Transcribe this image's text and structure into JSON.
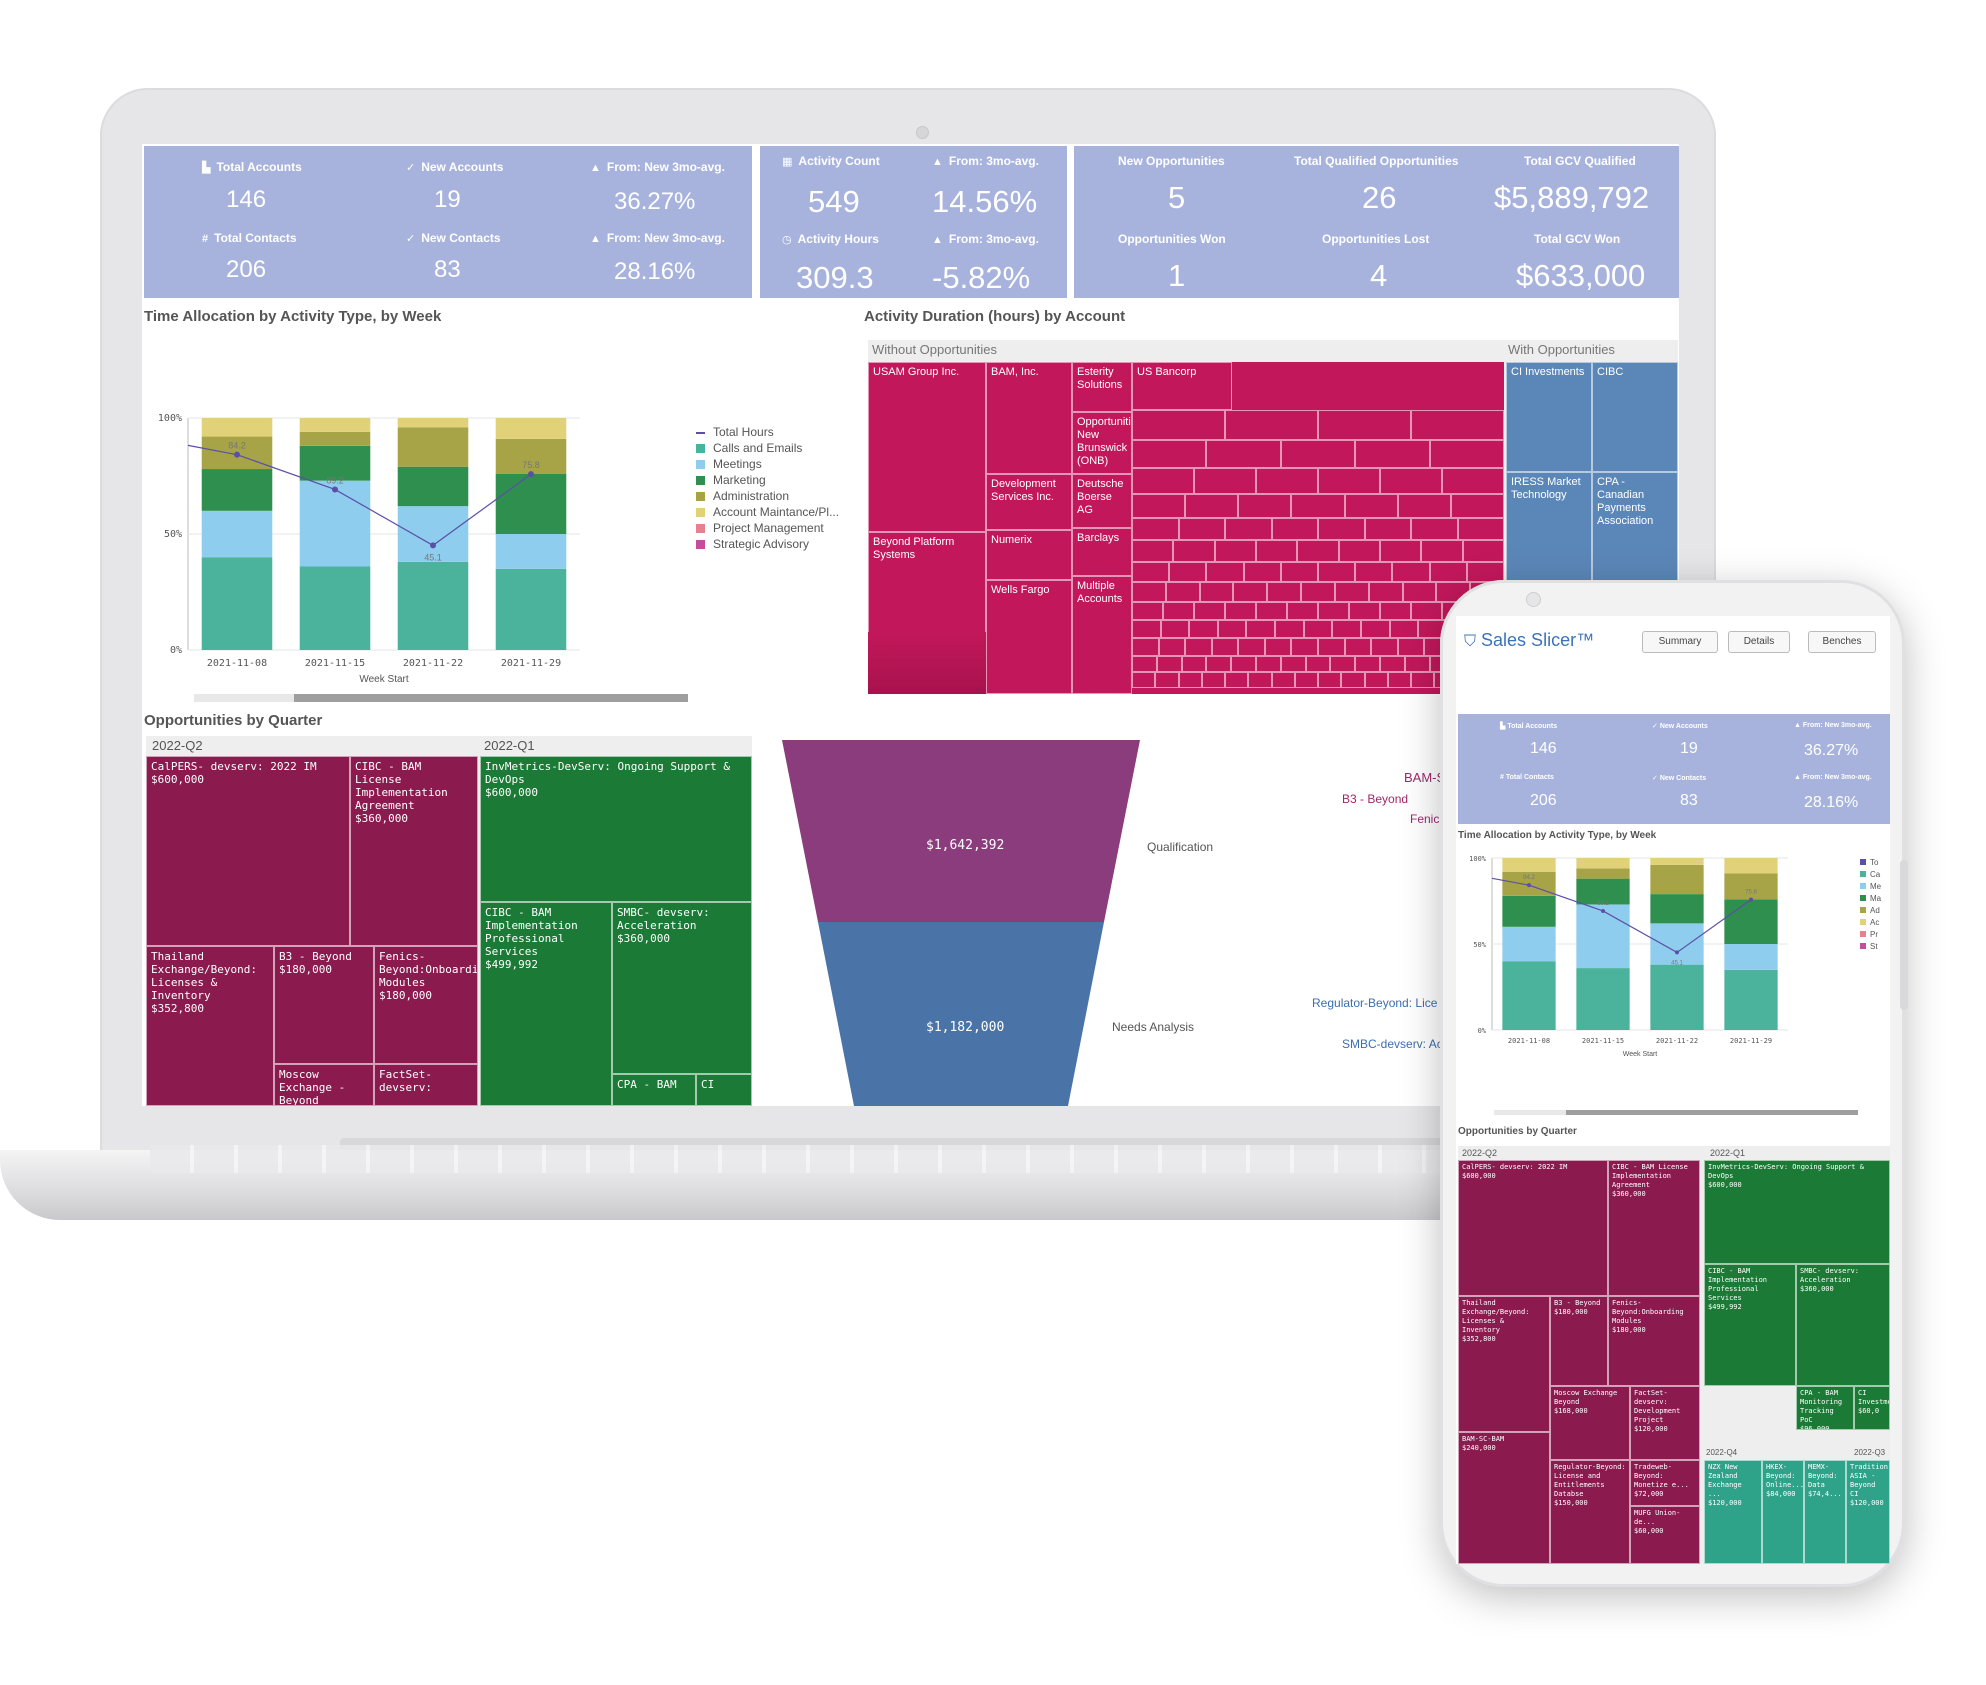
{
  "desktop": {
    "kpi_left": {
      "total_accounts_label": "Total Accounts",
      "total_accounts_value": "146",
      "new_accounts_label": "New Accounts",
      "new_accounts_value": "19",
      "from_new_label_1": "From: New 3mo-avg.",
      "from_new_value_1": "36.27%",
      "total_contacts_label": "Total Contacts",
      "total_contacts_value": "206",
      "new_contacts_label": "New Contacts",
      "new_contacts_value": "83",
      "from_new_label_2": "From: New 3mo-avg.",
      "from_new_value_2": "28.16%"
    },
    "kpi_mid": {
      "activity_count_label": "Activity Count",
      "activity_count_value": "549",
      "from_avg_label_1": "From: 3mo-avg.",
      "from_avg_value_1": "14.56%",
      "activity_hours_label": "Activity Hours",
      "activity_hours_value": "309.3",
      "from_avg_label_2": "From: 3mo-avg.",
      "from_avg_value_2": "-5.82%"
    },
    "kpi_right": {
      "new_opps_label": "New Opportunities",
      "new_opps_value": "5",
      "total_qualified_label": "Total Qualified Opportunities",
      "total_qualified_value": "26",
      "gcv_qualified_label": "Total GCV Qualified",
      "gcv_qualified_value": "$5,889,792",
      "opps_won_label": "Opportunities Won",
      "opps_won_value": "1",
      "opps_lost_label": "Opportunities Lost",
      "opps_lost_value": "4",
      "gcv_won_label": "Total GCV Won",
      "gcv_won_value": "$633,000"
    },
    "time_alloc_title": "Time Allocation by Activity Type, by Week",
    "activity_duration_title": "Activity Duration (hours) by Account",
    "opps_by_quarter_title": "Opportunities by Quarter",
    "treemap": {
      "group_without": "Without Opportunities",
      "group_with": "With Opportunities",
      "without_cells": [
        "USAM Group Inc.",
        "BAM, Inc.",
        "Esterity Solutions",
        "US Bancorp",
        "Opportunities New Brunswick (ONB)",
        "Development Services Inc.",
        "Deutsche Boerse AG",
        "Beyond Platform Systems",
        "Numerix",
        "Barclays",
        "Wells Fargo",
        "Multiple Accounts"
      ],
      "with_cells": [
        "CI Investments",
        "CIBC",
        "IRESS Market Technology",
        "CPA - Canadian Payments Association"
      ]
    },
    "opps": {
      "q2_label": "2022-Q2",
      "q1_label": "2022-Q1",
      "q2_cells": [
        {
          "name": "CalPERS- devserv: 2022 IM",
          "value": "$600,000"
        },
        {
          "name": "CIBC - BAM License Implementation Agreement",
          "value": "$360,000"
        },
        {
          "name": "Thailand Exchange/Beyond: Licenses & Inventory",
          "value": "$352,800"
        },
        {
          "name": "B3 - Beyond",
          "value": "$180,000"
        },
        {
          "name": "Fenics-Beyond:Onboarding Modules",
          "value": "$180,000"
        },
        {
          "name": "Moscow Exchange - Beyond",
          "value": ""
        },
        {
          "name": "FactSet-devserv:",
          "value": ""
        }
      ],
      "q1_cells": [
        {
          "name": "InvMetrics-DevServ: Ongoing Support & DevOps",
          "value": "$600,000"
        },
        {
          "name": "CIBC - BAM Implementation Professional Services",
          "value": "$499,992"
        },
        {
          "name": "SMBC- devserv: Acceleration",
          "value": "$360,000"
        },
        {
          "name": "CPA - BAM",
          "value": ""
        },
        {
          "name": "CI",
          "value": ""
        }
      ]
    },
    "funnel": {
      "stage1_label": "Qualification",
      "stage1_value": "$1,642,392",
      "stage2_label": "Needs Analysis",
      "stage2_value": "$1,182,000"
    },
    "side_labels": [
      "BAM-S",
      "B3 - Beyond",
      "Fenic",
      "Regulator-Beyond: Lice",
      "SMBC-devserv: Ac"
    ]
  },
  "chart_data": [
    {
      "type": "bar",
      "stacked": true,
      "title": "Time Allocation by Activity Type, by Week",
      "xlabel": "Week Start",
      "ylabel": "",
      "categories": [
        "2021-11-08",
        "2021-11-15",
        "2021-11-22",
        "2021-11-29"
      ],
      "y_ticks": [
        "100%",
        "50%",
        "0%"
      ],
      "ylim": [
        0,
        100
      ],
      "series": [
        {
          "name": "Calls and Emails",
          "color": "#4bb39c",
          "values": [
            40,
            36,
            38,
            35
          ]
        },
        {
          "name": "Meetings",
          "color": "#8ecdee",
          "values": [
            20,
            37,
            24,
            15
          ]
        },
        {
          "name": "Marketing",
          "color": "#2f8f4e",
          "values": [
            18,
            15,
            17,
            26
          ]
        },
        {
          "name": "Administration",
          "color": "#a6a447",
          "values": [
            14,
            6,
            17,
            15
          ]
        },
        {
          "name": "Account Maintance/Pl...",
          "color": "#e1d27a",
          "values": [
            8,
            6,
            4,
            9
          ]
        },
        {
          "name": "Project Management",
          "color": "#e3838f",
          "values": [
            0,
            0,
            0,
            0
          ]
        },
        {
          "name": "Strategic Advisory",
          "color": "#c14f9b",
          "values": [
            0,
            0,
            0,
            0
          ]
        }
      ],
      "line": {
        "name": "Total Hours",
        "color": "#5b4fa6",
        "values": [
          84.2,
          69.2,
          45.1,
          75.8
        ],
        "labels": [
          "84.2",
          "69.2",
          "45.1",
          "75.8"
        ],
        "max": 100
      },
      "legend": "right"
    },
    {
      "type": "area",
      "subtype": "funnel",
      "stages": [
        "Qualification",
        "Needs Analysis"
      ],
      "values": [
        1642392,
        1182000
      ]
    }
  ],
  "phone": {
    "app_name": "Sales Slicer™",
    "buttons": [
      "Summary",
      "Details",
      "Benches"
    ],
    "kpi": {
      "l1": "Total Accounts",
      "v1": "146",
      "l2": "New Accounts",
      "v2": "19",
      "l3": "From: New 3mo-avg.",
      "v3": "36.27%",
      "l4": "Total Contacts",
      "v4": "206",
      "l5": "New Contacts",
      "v5": "83",
      "l6": "From: New 3mo-avg.",
      "v6": "28.16%"
    },
    "time_alloc_title": "Time Allocation by Activity Type, by Week",
    "opps_title": "Opportunities by Quarter",
    "legend_abbrev": [
      "To",
      "Ca",
      "Me",
      "Ma",
      "Ad",
      "Ac",
      "Pr",
      "St"
    ],
    "opps": {
      "q2_label": "2022-Q2",
      "q1_label": "2022-Q1",
      "q4_label": "2022-Q4",
      "q3_label": "2022-Q3",
      "cells": [
        {
          "name": "CalPERS- devserv: 2022 IM",
          "value": "$600,000"
        },
        {
          "name": "CIBC - BAM License Implementation Agreement",
          "value": "$360,000"
        },
        {
          "name": "InvMetrics-DevServ: Ongoing Support & DevOps",
          "value": "$600,000"
        },
        {
          "name": "CIBC - BAM Implementation Professional Services",
          "value": "$499,992"
        },
        {
          "name": "SMBC- devserv: Acceleration",
          "value": "$360,000"
        },
        {
          "name": "Thailand Exchange/Beyond: Licenses & Inventory",
          "value": "$352,800"
        },
        {
          "name": "B3 - Beyond",
          "value": "$180,000"
        },
        {
          "name": "Fenics-Beyond:Onboarding Modules",
          "value": "$180,000"
        },
        {
          "name": "Moscow Exchange Beyond",
          "value": "$168,000"
        },
        {
          "name": "FactSet-devserv: Development Project",
          "value": "$120,000"
        },
        {
          "name": "CPA - BAM Monitoring Tracking PoC",
          "value": "$96,000"
        },
        {
          "name": "CI Investments",
          "value": "$60,0"
        },
        {
          "name": "BAM-SC-BAM",
          "value": "$240,000"
        },
        {
          "name": "Regulator-Beyond: License and Entitlements Databse",
          "value": "$150,000"
        },
        {
          "name": "Tradeweb-Beyond: Monetize e...",
          "value": "$72,000"
        },
        {
          "name": "MUFG Union- de...",
          "value": "$60,000"
        },
        {
          "name": "NZX New Zealand Exchange ...",
          "value": "$120,000"
        },
        {
          "name": "HKEX-Beyond: Online...",
          "value": "$84,000"
        },
        {
          "name": "MEMX-Beyond: Data",
          "value": "$74,4..."
        },
        {
          "name": "Tradition ASIA - Beyond CI",
          "value": "$120,000"
        }
      ]
    }
  }
}
